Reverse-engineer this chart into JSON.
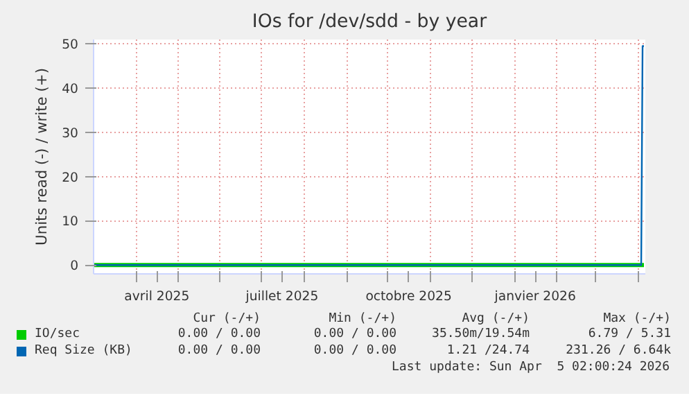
{
  "chart_data": {
    "type": "line",
    "title": "IOs for /dev/sdd - by year",
    "ylabel": "Units read (-) / write (+)",
    "xlim": [
      "2025-03-01",
      "2026-04-06"
    ],
    "ylim": [
      -2,
      51
    ],
    "yticks": [
      0,
      10,
      20,
      30,
      40,
      50
    ],
    "xticks": [
      {
        "value": "2025-04-01",
        "label": null
      },
      {
        "value": "2025-04-16",
        "label": "avril 2025"
      },
      {
        "value": "2025-05-01",
        "label": null
      },
      {
        "value": "2025-06-01",
        "label": null
      },
      {
        "value": "2025-07-01",
        "label": null
      },
      {
        "value": "2025-07-16",
        "label": "juillet 2025"
      },
      {
        "value": "2025-08-01",
        "label": null
      },
      {
        "value": "2025-09-01",
        "label": null
      },
      {
        "value": "2025-10-01",
        "label": null
      },
      {
        "value": "2025-10-16",
        "label": "octobre 2025"
      },
      {
        "value": "2025-11-01",
        "label": null
      },
      {
        "value": "2025-12-01",
        "label": null
      },
      {
        "value": "2026-01-01",
        "label": null
      },
      {
        "value": "2026-01-16",
        "label": "janvier 2026"
      },
      {
        "value": "2026-02-01",
        "label": null
      },
      {
        "value": "2026-03-01",
        "label": null
      },
      {
        "value": "2026-04-01",
        "label": null
      }
    ],
    "grid": true,
    "legend": "bottom",
    "series": [
      {
        "name": "IO/sec",
        "color": "#00cc00",
        "x": [
          "2025-03-01",
          "2026-04-05"
        ],
        "values": [
          0,
          0
        ]
      },
      {
        "name": "Req Size (KB)",
        "color": "#0066b3",
        "x": [
          "2025-03-01",
          "2026-04-03",
          "2026-04-04",
          "2026-04-05"
        ],
        "values": [
          0,
          0,
          49.5,
          49.5
        ]
      }
    ],
    "annotations": [
      "Cur (-/+)",
      "Min (-/+)",
      "Avg (-/+)",
      "Max (-/+)",
      "0.00 / 0.00",
      "0.00 / 0.00",
      "35.50m/19.54m",
      "6.79 / 5.31",
      "0.00 / 0.00",
      "0.00 / 0.00",
      "1.21 /24.74",
      "231.26 / 6.64k",
      "Last update: Sun Apr  5 02:00:24 2026"
    ]
  }
}
